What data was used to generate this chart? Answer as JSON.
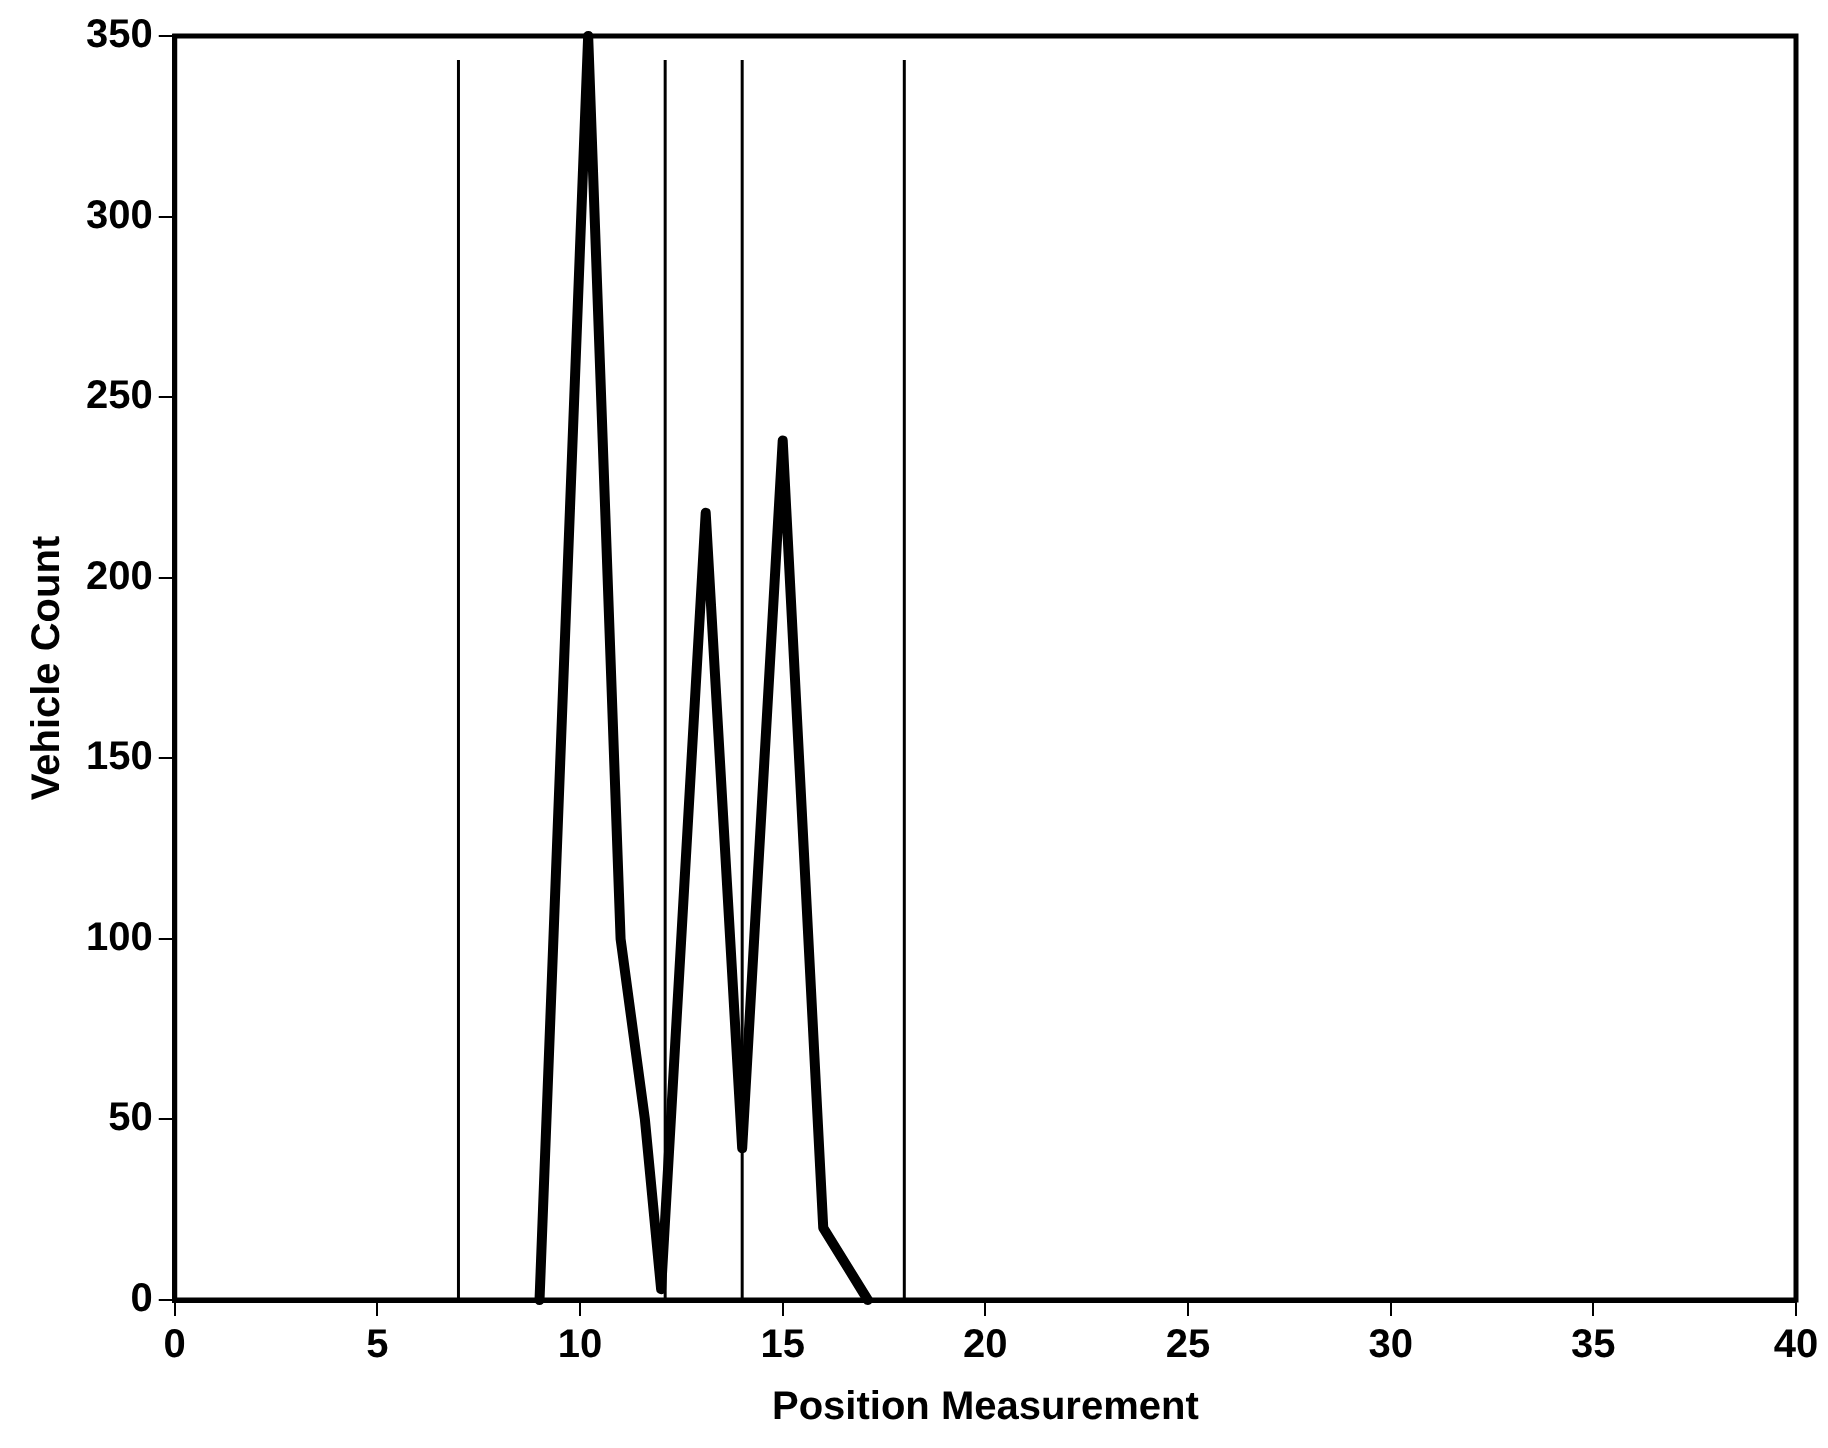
{
  "chart_data": {
    "type": "line",
    "xlabel": "Position Measurement",
    "ylabel": "Vehicle Count",
    "x": [
      9,
      10.2,
      11,
      11.6,
      12,
      13.1,
      14,
      15,
      16,
      17.1
    ],
    "series": [
      {
        "color": "#000000",
        "values": [
          0,
          350,
          100,
          50,
          3,
          218,
          42,
          238,
          20,
          0
        ]
      }
    ],
    "xlim": [
      0,
      40
    ],
    "xticks": [
      0,
      5,
      10,
      15,
      20,
      25,
      30,
      35,
      40
    ],
    "ylim": [
      0,
      350
    ],
    "yticks": [
      0,
      50,
      100,
      150,
      200,
      250,
      300,
      350
    ],
    "ref_lines": [
      {
        "axis": "x",
        "value": 7,
        "color": "#000000"
      },
      {
        "axis": "x",
        "value": 12.1,
        "color": "#000000"
      },
      {
        "axis": "x",
        "value": 14,
        "color": "#000000"
      },
      {
        "axis": "x",
        "value": 18,
        "color": "#000000"
      }
    ],
    "grid": false,
    "legend": false,
    "marker": "none",
    "line_style": "solid"
  }
}
